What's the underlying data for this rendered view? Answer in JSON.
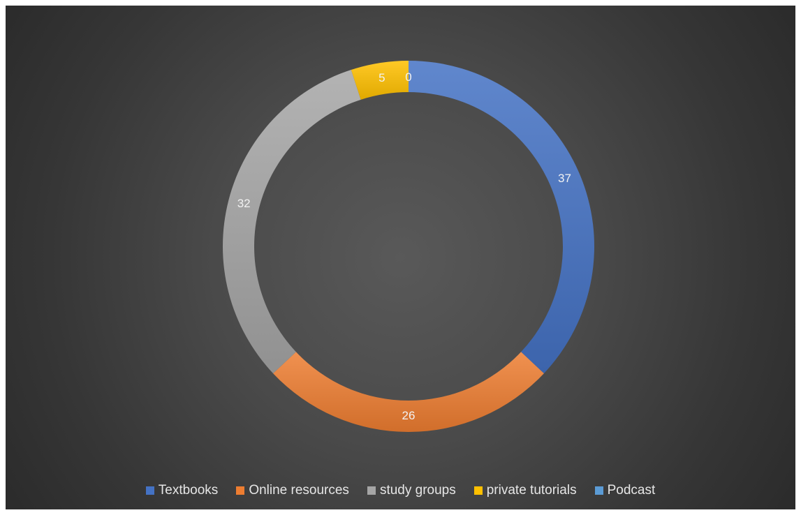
{
  "chart_data": {
    "type": "pie",
    "variant": "doughnut",
    "title": "",
    "categories": [
      "Textbooks",
      "Online resources",
      "study groups",
      "private tutorials",
      "Podcast"
    ],
    "values": [
      37,
      26,
      32,
      5,
      0
    ],
    "colors": [
      "#4472c4",
      "#ed7d31",
      "#a5a5a5",
      "#ffc000",
      "#5b9bd5"
    ],
    "data_labels": [
      "37",
      "26",
      "32",
      "5",
      "0"
    ],
    "legend_position": "bottom",
    "background": "dark-radial"
  }
}
